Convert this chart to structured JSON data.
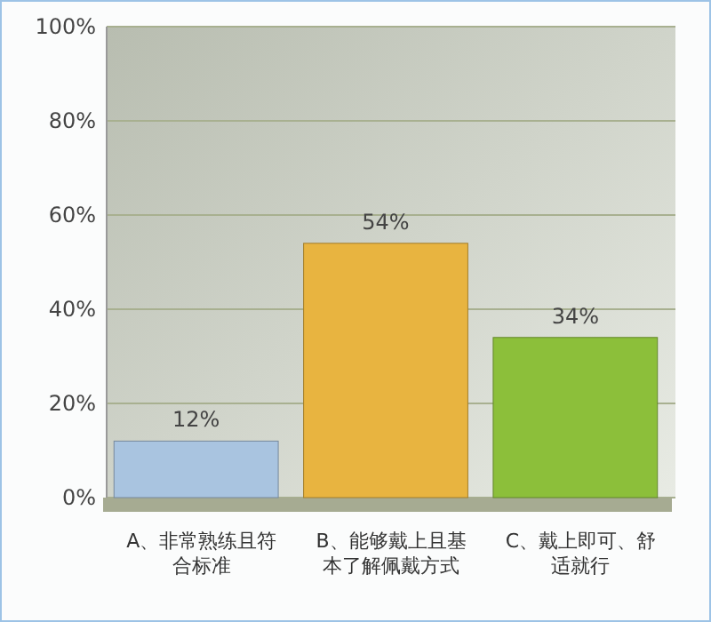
{
  "chart_data": {
    "type": "bar",
    "categories": [
      "A、非常熟练且符合标准",
      "B、能够戴上且基本了解佩戴方式",
      "C、戴上即可、舒适就行"
    ],
    "values": [
      12,
      54,
      34
    ],
    "colors": [
      "#a9c4e0",
      "#e8b440",
      "#8cbf3a"
    ],
    "value_labels": [
      "12%",
      "54%",
      "34%"
    ],
    "ylim": [
      0,
      100
    ],
    "yticks": [
      {
        "value": 0,
        "label": "0%"
      },
      {
        "value": 20,
        "label": "20%"
      },
      {
        "value": 40,
        "label": "40%"
      },
      {
        "value": 60,
        "label": "60%"
      },
      {
        "value": 80,
        "label": "80%"
      },
      {
        "value": 100,
        "label": "100%"
      }
    ],
    "grid": "y"
  }
}
